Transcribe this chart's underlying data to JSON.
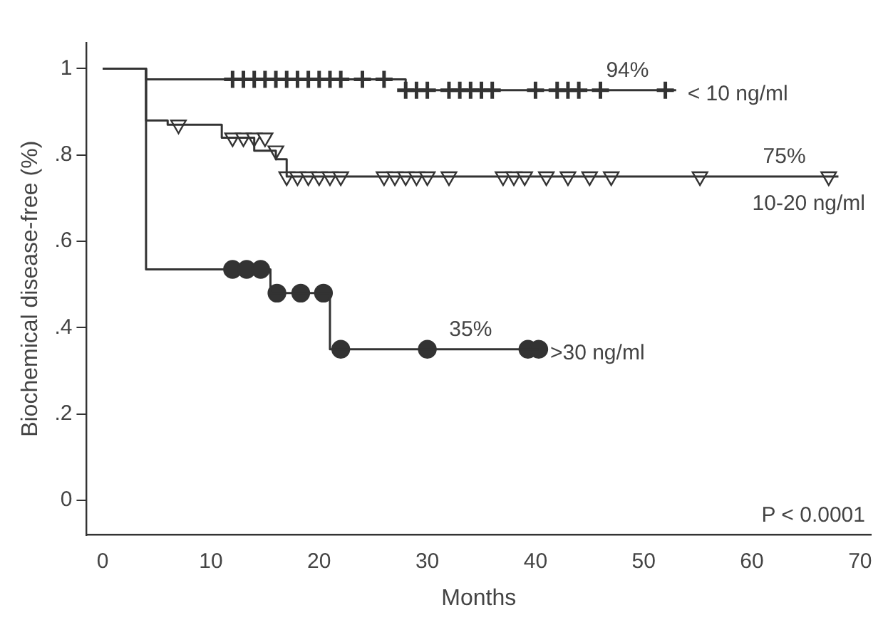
{
  "chart_data": {
    "type": "step",
    "xlabel": "Months",
    "ylabel": "Biochemical disease-free (%)",
    "xlim": [
      -1.5,
      71
    ],
    "xticks": [
      0,
      10,
      20,
      30,
      40,
      50,
      60,
      70
    ],
    "ylim": [
      -0.08,
      1.06
    ],
    "yticks": [
      0,
      {
        "value": 0.2,
        "label": ".2"
      },
      {
        "value": 0.4,
        "label": ".4"
      },
      {
        "value": 0.6,
        "label": ".6"
      },
      {
        "value": 0.8,
        "label": ".8"
      },
      1
    ],
    "grid": false,
    "legend": false,
    "line_style": "solid",
    "series": [
      {
        "name": "< 10 ng/ml",
        "color": "#333333",
        "x": [
          0,
          4,
          28,
          53
        ],
        "values": [
          1,
          0.975,
          0.95,
          0.95
        ]
      },
      {
        "name": "10-20 ng/ml",
        "color": "#333333",
        "x": [
          0,
          4,
          6,
          11,
          14,
          16,
          17,
          68
        ],
        "values": [
          1,
          0.88,
          0.87,
          0.84,
          0.81,
          0.79,
          0.75,
          0.75
        ]
      },
      {
        "name": ">30 ng/ml",
        "color": "#333333",
        "x": [
          0,
          4,
          15.5,
          21,
          40.3
        ],
        "values": [
          1,
          0.535,
          0.48,
          0.35,
          0.35
        ]
      },
      {
        "type": "scatter",
        "marker": "cross",
        "color": "#333333",
        "x": [
          12,
          13,
          14,
          15,
          16,
          17,
          18,
          19,
          20,
          21,
          22,
          24,
          26,
          28,
          29,
          30,
          32,
          33,
          34,
          35,
          36,
          40,
          42,
          43,
          44,
          46,
          52
        ],
        "values": [
          0.975,
          0.975,
          0.975,
          0.975,
          0.975,
          0.975,
          0.975,
          0.975,
          0.975,
          0.975,
          0.975,
          0.975,
          0.975,
          0.95,
          0.95,
          0.95,
          0.95,
          0.95,
          0.95,
          0.95,
          0.95,
          0.95,
          0.95,
          0.95,
          0.95,
          0.95,
          0.95
        ]
      },
      {
        "type": "scatter",
        "marker": "triangle",
        "color": "#333333",
        "x": [
          7,
          12,
          13,
          14,
          15,
          16,
          17,
          18,
          19,
          20,
          21,
          22,
          26,
          27,
          28,
          29,
          30,
          32,
          37,
          38,
          39,
          41,
          43,
          45,
          47,
          55.2,
          67.1
        ],
        "values": [
          0.87,
          0.84,
          0.84,
          0.84,
          0.84,
          0.81,
          0.75,
          0.75,
          0.75,
          0.75,
          0.75,
          0.75,
          0.75,
          0.75,
          0.75,
          0.75,
          0.75,
          0.75,
          0.75,
          0.75,
          0.75,
          0.75,
          0.75,
          0.75,
          0.75,
          0.75,
          0.75
        ]
      },
      {
        "type": "scatter",
        "marker": "circle",
        "color": "#333333",
        "x": [
          12,
          13.3,
          14.6,
          16.1,
          18.3,
          20.4,
          22,
          30,
          39.3,
          40.3
        ],
        "values": [
          0.535,
          0.535,
          0.535,
          0.48,
          0.48,
          0.48,
          0.35,
          0.35,
          0.35,
          0.35
        ]
      }
    ],
    "annotations": [
      {
        "text": "94%",
        "x": 48.5,
        "y": 0.95
      },
      {
        "text": "75%",
        "x": 63,
        "y": 0.75
      },
      {
        "text": "35%",
        "x": 34,
        "y": 0.35
      },
      "P < 0.0001"
    ]
  }
}
